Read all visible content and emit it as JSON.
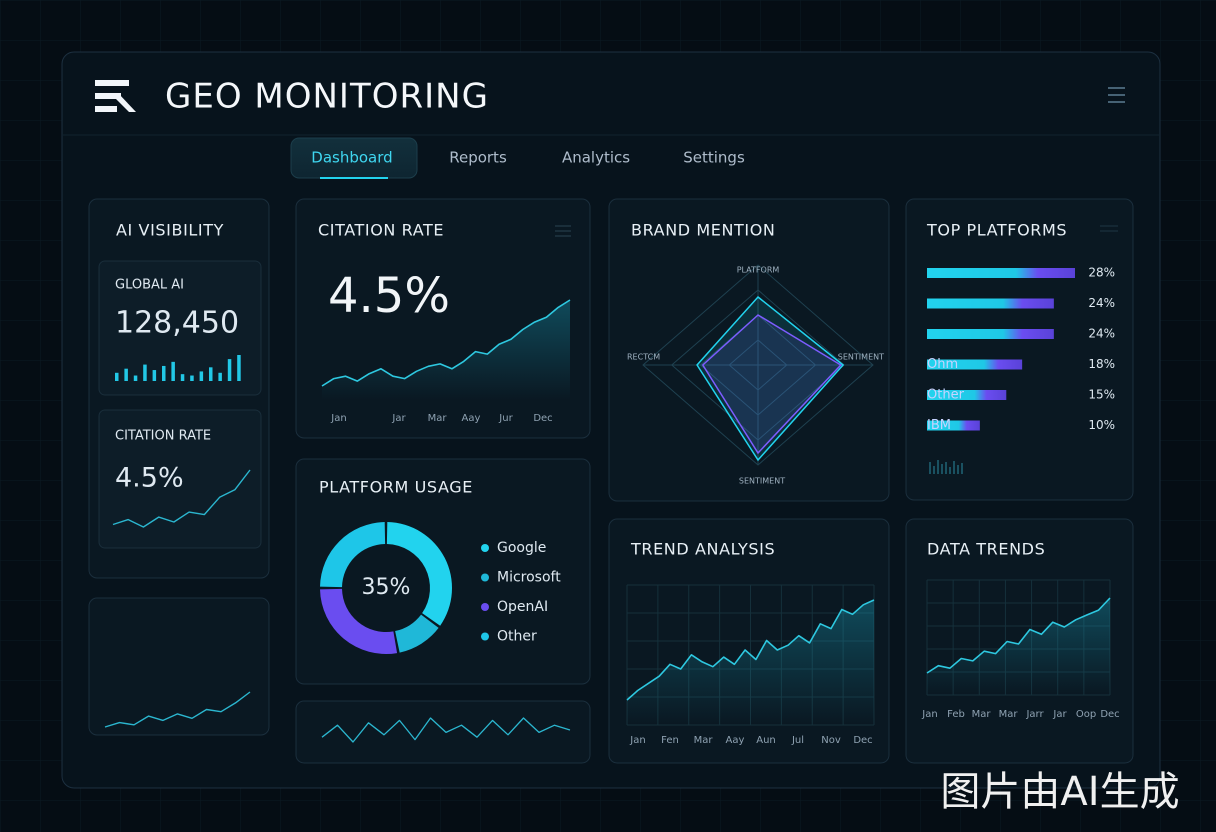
{
  "header": {
    "title": "GEO MONITORING"
  },
  "nav": [
    "Dashboard",
    "Reports",
    "Analytics",
    "Settings"
  ],
  "ai_visibility": {
    "title": "AI VISIBILITY",
    "global": {
      "label": "GLOBAL AI",
      "value": "128,450",
      "bars": [
        30,
        45,
        20,
        60,
        40,
        55,
        70,
        25,
        20,
        35,
        50,
        30,
        80,
        95
      ]
    },
    "citation": {
      "label": "CITATION RATE",
      "value": "4.5%",
      "line": [
        12,
        16,
        10,
        18,
        14,
        22,
        20,
        34,
        40,
        56
      ]
    }
  },
  "side_trend": {
    "line": [
      8,
      12,
      10,
      18,
      14,
      20,
      16,
      24,
      22,
      30,
      40
    ]
  },
  "citation_rate": {
    "title": "CITATION RATE",
    "value": "4.5%",
    "categories": [
      "Jan",
      "Jar",
      "Mar",
      "Aay",
      "Jur",
      "Dec"
    ],
    "line": [
      10,
      16,
      18,
      14,
      20,
      24,
      18,
      16,
      22,
      26,
      28,
      24,
      30,
      38,
      36,
      44,
      48,
      56,
      62,
      66,
      74,
      80
    ]
  },
  "platform_usage": {
    "title": "PLATFORM USAGE",
    "center_label": "35%",
    "categories": [
      "Google",
      "Microsoft",
      "OpenAI",
      "Other"
    ],
    "values": [
      35,
      12,
      28,
      25
    ],
    "colors": [
      "#22d3ee",
      "#1fb8d8",
      "#6a4df0",
      "#1ec6e8"
    ]
  },
  "wave": {
    "line": [
      20,
      30,
      16,
      32,
      22,
      34,
      18,
      36,
      24,
      30,
      20,
      34,
      22,
      36,
      24,
      30,
      26
    ]
  },
  "brand_mention": {
    "title": "BRAND MENTION",
    "axes": [
      "PLATFORM",
      "SENTIMENT",
      "SENTIMENT",
      "RECTCM"
    ],
    "series": [
      {
        "color": "#22d3ee",
        "values": [
          0.68,
          0.74,
          0.95,
          0.53
        ]
      },
      {
        "color": "#7c5cff",
        "values": [
          0.5,
          0.72,
          0.88,
          0.48
        ]
      }
    ]
  },
  "top_platforms": {
    "title": "TOP PLATFORMS",
    "categories": [
      null,
      null,
      null,
      "Ohm",
      "Other",
      "IBM"
    ],
    "values": [
      28,
      24,
      24,
      18,
      15,
      10
    ],
    "value_labels": [
      "28%",
      "24%",
      "24%",
      "18%",
      "15%",
      "10%"
    ]
  },
  "trend_analysis": {
    "title": "TREND ANALYSIS",
    "categories": [
      "Jan",
      "Fen",
      "Mar",
      "Aay",
      "Aun",
      "Jul",
      "Nov",
      "Dec"
    ],
    "line": [
      10,
      18,
      24,
      30,
      40,
      36,
      48,
      42,
      38,
      46,
      40,
      52,
      44,
      60,
      52,
      56,
      64,
      58,
      74,
      70,
      86,
      82,
      90,
      94
    ]
  },
  "data_trends": {
    "title": "DATA TRENDS",
    "categories": [
      "Jan",
      "Feb",
      "Mar",
      "Mar",
      "Jarr",
      "Jar",
      "Oop",
      "Dec"
    ],
    "line": [
      20,
      26,
      24,
      32,
      30,
      38,
      36,
      46,
      44,
      56,
      52,
      62,
      58,
      64,
      68,
      72,
      82
    ]
  },
  "watermark": "图片由AI生成"
}
